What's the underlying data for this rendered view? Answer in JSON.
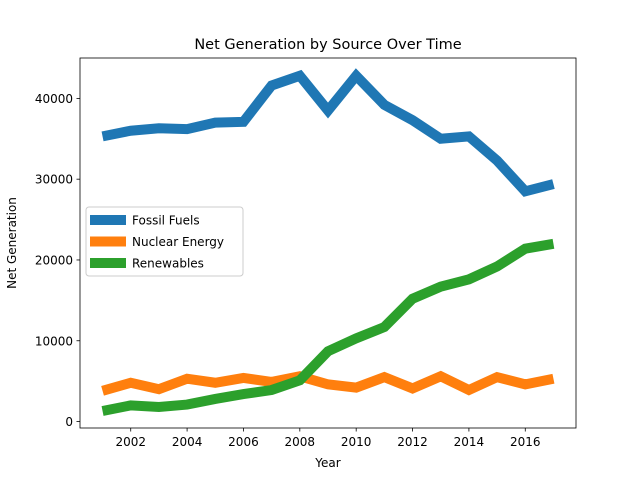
{
  "chart_data": {
    "type": "line",
    "title": "Net Generation by Source Over Time",
    "xlabel": "Year",
    "ylabel": "Net Generation",
    "xlim": [
      2000.2,
      2017.8
    ],
    "ylim": [
      -800,
      45000
    ],
    "xticks": [
      2002,
      2004,
      2006,
      2008,
      2010,
      2012,
      2014,
      2016
    ],
    "yticks": [
      0,
      10000,
      20000,
      30000,
      40000
    ],
    "grid": false,
    "legend_position": "center-left",
    "x": [
      2001,
      2002,
      2003,
      2004,
      2005,
      2006,
      2007,
      2008,
      2009,
      2010,
      2011,
      2012,
      2013,
      2014,
      2015,
      2016,
      2017
    ],
    "series": [
      {
        "name": "Fossil Fuels",
        "color": "#1f77b4",
        "values": [
          35300,
          36000,
          36300,
          36200,
          37000,
          37100,
          41600,
          42800,
          38500,
          42800,
          39200,
          37300,
          35000,
          35300,
          32300,
          28500,
          29400
        ]
      },
      {
        "name": "Nuclear Energy",
        "color": "#ff7f0e",
        "values": [
          3800,
          4800,
          4000,
          5300,
          4800,
          5400,
          4900,
          5600,
          4600,
          4200,
          5500,
          4100,
          5600,
          3900,
          5500,
          4600,
          5300
        ]
      },
      {
        "name": "Renewables",
        "color": "#2ca02c",
        "values": [
          1300,
          2000,
          1800,
          2100,
          2800,
          3400,
          3900,
          5100,
          8700,
          10300,
          11700,
          15200,
          16700,
          17600,
          19200,
          21400,
          22000
        ]
      }
    ]
  }
}
